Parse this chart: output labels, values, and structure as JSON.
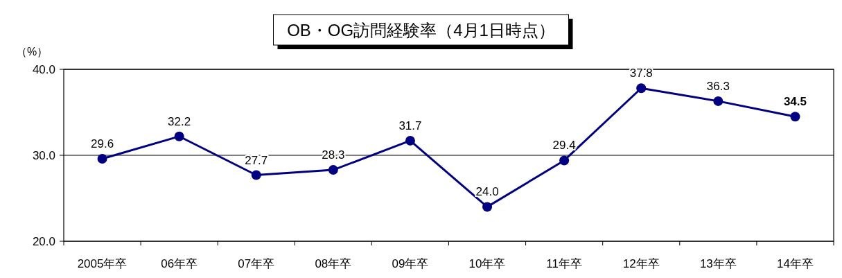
{
  "chart_data": {
    "type": "line",
    "title": "OB・OG訪問経験率（4月1日時点）",
    "ylabel": "（%）",
    "categories": [
      "2005年卒",
      "06年卒",
      "07年卒",
      "08年卒",
      "09年卒",
      "10年卒",
      "11年卒",
      "12年卒",
      "13年卒",
      "14年卒"
    ],
    "series": [
      {
        "color": "#000080",
        "values": [
          29.6,
          32.2,
          27.7,
          28.3,
          31.7,
          24.0,
          29.4,
          37.8,
          36.3,
          34.5
        ]
      }
    ],
    "ylim": [
      20,
      40
    ],
    "yticks": [
      {
        "value": 20,
        "label": "20.0"
      },
      {
        "value": 30,
        "label": "30.0"
      },
      {
        "value": 40,
        "label": "40.0"
      }
    ],
    "value_labels": [
      "29.6",
      "32.2",
      "27.7",
      "28.3",
      "31.7",
      "24.0",
      "29.4",
      "37.8",
      "36.3",
      "34.5"
    ],
    "grid": "y",
    "marker": "circle",
    "line_style": "solid"
  }
}
